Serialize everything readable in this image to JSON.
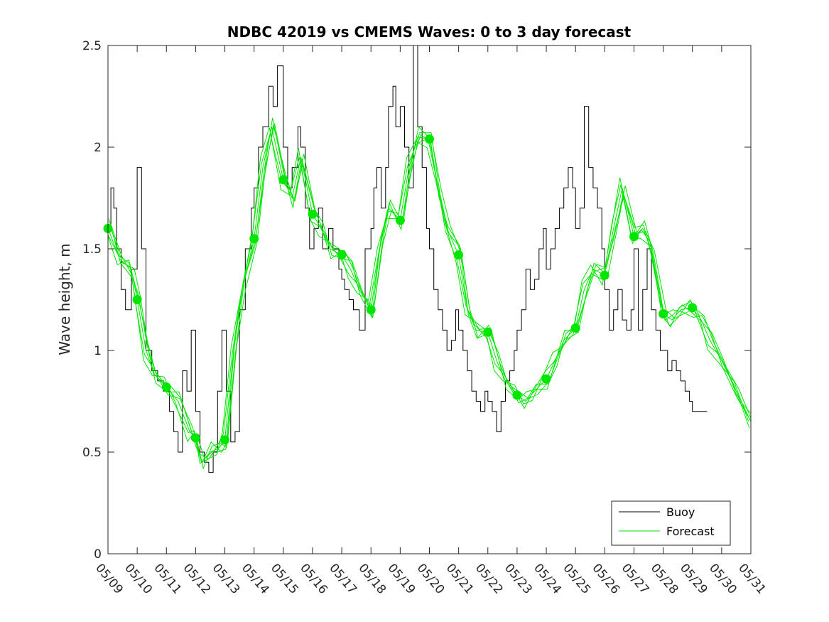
{
  "chart_data": {
    "type": "line",
    "title": "NDBC 42019 vs CMEMS Waves: 0 to 3 day forecast",
    "xlabel": "",
    "ylabel": "Wave height, m",
    "xlim": [
      "05/09",
      "05/31"
    ],
    "ylim": [
      0,
      2.5
    ],
    "yticks": [
      "0",
      "0.5",
      "1",
      "1.5",
      "2",
      "2.5"
    ],
    "categories": [
      "05/09",
      "05/10",
      "05/11",
      "05/12",
      "05/13",
      "05/14",
      "05/15",
      "05/16",
      "05/17",
      "05/18",
      "05/19",
      "05/20",
      "05/21",
      "05/22",
      "05/23",
      "05/24",
      "05/25",
      "05/26",
      "05/27",
      "05/28",
      "05/29",
      "05/30",
      "05/31"
    ],
    "grid": false,
    "legend_position": "bottom-right",
    "legend": [
      "Buoy",
      "Forecast"
    ],
    "colors": {
      "buoy": "#000000",
      "forecast": "#00e600",
      "axes": "#262626"
    },
    "series": [
      {
        "name": "Buoy",
        "x": [
          0,
          0.1,
          0.2,
          0.3,
          0.45,
          0.6,
          0.8,
          1.0,
          1.15,
          1.3,
          1.5,
          1.7,
          1.9,
          2.0,
          2.1,
          2.25,
          2.4,
          2.55,
          2.7,
          2.85,
          3.0,
          3.15,
          3.3,
          3.45,
          3.6,
          3.75,
          3.9,
          4.05,
          4.2,
          4.35,
          4.5,
          4.7,
          4.9,
          5.0,
          5.15,
          5.3,
          5.5,
          5.65,
          5.8,
          6.0,
          6.15,
          6.3,
          6.5,
          6.6,
          6.75,
          6.9,
          7.05,
          7.2,
          7.35,
          7.55,
          7.7,
          7.9,
          8.0,
          8.1,
          8.25,
          8.4,
          8.6,
          8.8,
          9.0,
          9.1,
          9.2,
          9.35,
          9.5,
          9.6,
          9.75,
          9.85,
          10.0,
          10.15,
          10.3,
          10.45,
          10.6,
          10.75,
          10.9,
          11.0,
          11.15,
          11.3,
          11.45,
          11.6,
          11.75,
          11.9,
          12.0,
          12.15,
          12.3,
          12.45,
          12.6,
          12.75,
          12.9,
          13.0,
          13.15,
          13.3,
          13.45,
          13.6,
          13.75,
          13.9,
          14.0,
          14.15,
          14.3,
          14.45,
          14.6,
          14.75,
          14.9,
          15.0,
          15.15,
          15.3,
          15.45,
          15.6,
          15.75,
          15.9,
          16.0,
          16.15,
          16.3,
          16.45,
          16.6,
          16.75,
          16.9,
          17.0,
          17.15,
          17.3,
          17.45,
          17.6,
          17.75,
          17.9,
          18.0,
          18.15,
          18.3,
          18.45,
          18.6,
          18.75,
          18.9,
          19.0,
          19.15,
          19.3,
          19.45,
          19.6,
          19.75,
          19.9,
          20.0,
          20.15,
          20.3,
          20.5
        ],
        "values": [
          1.6,
          1.8,
          1.7,
          1.5,
          1.3,
          1.2,
          1.4,
          1.9,
          1.5,
          1.0,
          0.9,
          0.85,
          0.8,
          0.8,
          0.7,
          0.6,
          0.5,
          0.9,
          0.8,
          1.1,
          0.7,
          0.5,
          0.45,
          0.4,
          0.5,
          0.8,
          1.1,
          0.8,
          0.55,
          0.6,
          1.2,
          1.5,
          1.7,
          1.8,
          2.0,
          2.1,
          2.3,
          2.2,
          2.4,
          2.0,
          1.8,
          1.9,
          2.1,
          2.0,
          1.7,
          1.5,
          1.6,
          1.7,
          1.5,
          1.6,
          1.5,
          1.4,
          1.35,
          1.3,
          1.25,
          1.2,
          1.1,
          1.5,
          1.6,
          1.8,
          1.9,
          1.7,
          1.9,
          2.2,
          2.3,
          2.1,
          2.2,
          2.0,
          1.8,
          2.5,
          2.1,
          1.9,
          1.6,
          1.5,
          1.3,
          1.2,
          1.1,
          1.0,
          1.05,
          1.2,
          1.1,
          1.0,
          0.9,
          0.8,
          0.75,
          0.7,
          0.8,
          0.75,
          0.7,
          0.6,
          0.75,
          0.85,
          0.9,
          1.0,
          1.1,
          1.2,
          1.4,
          1.3,
          1.35,
          1.5,
          1.6,
          1.4,
          1.5,
          1.6,
          1.7,
          1.8,
          1.9,
          1.8,
          1.6,
          1.7,
          2.2,
          1.9,
          1.8,
          1.7,
          1.5,
          1.3,
          1.1,
          1.2,
          1.3,
          1.15,
          1.1,
          1.2,
          1.5,
          1.1,
          1.3,
          1.5,
          1.2,
          1.1,
          1.0,
          1.0,
          0.9,
          0.95,
          0.9,
          0.85,
          0.8,
          0.75,
          0.7,
          0.7,
          0.7,
          0.7
        ]
      },
      {
        "name": "Forecast",
        "x": [
          0,
          0.4,
          0.8,
          1.0,
          1.3,
          1.6,
          2.0,
          2.4,
          2.8,
          3.0,
          3.2,
          3.5,
          3.8,
          4.0,
          4.3,
          4.6,
          5.0,
          5.3,
          5.6,
          6.0,
          6.3,
          6.6,
          7.0,
          7.3,
          7.6,
          8.0,
          8.3,
          8.6,
          9.0,
          9.3,
          9.6,
          10.0,
          10.3,
          10.6,
          11.0,
          11.3,
          11.6,
          12.0,
          12.3,
          12.6,
          13.0,
          13.3,
          13.6,
          14.0,
          14.3,
          14.6,
          15.0,
          15.3,
          15.6,
          16.0,
          16.3,
          16.6,
          17.0,
          17.3,
          17.6,
          18.0,
          18.3,
          18.6,
          19.0,
          19.3,
          19.6,
          20.0,
          20.3,
          20.6,
          21.0,
          21.5,
          22.0
        ],
        "values": [
          1.6,
          1.45,
          1.4,
          1.25,
          1.0,
          0.88,
          0.82,
          0.75,
          0.6,
          0.57,
          0.45,
          0.5,
          0.52,
          0.56,
          1.0,
          1.3,
          1.55,
          1.9,
          2.1,
          1.84,
          1.75,
          1.95,
          1.67,
          1.6,
          1.5,
          1.47,
          1.4,
          1.3,
          1.2,
          1.5,
          1.7,
          1.64,
          1.9,
          2.05,
          2.04,
          1.8,
          1.6,
          1.47,
          1.2,
          1.1,
          1.09,
          0.95,
          0.85,
          0.78,
          0.75,
          0.8,
          0.86,
          0.95,
          1.05,
          1.11,
          1.3,
          1.4,
          1.37,
          1.6,
          1.8,
          1.56,
          1.6,
          1.5,
          1.18,
          1.15,
          1.2,
          1.21,
          1.15,
          1.05,
          0.95,
          0.8,
          0.65
        ]
      },
      {
        "name": "",
        "x": [
          0,
          1,
          2,
          3,
          4,
          5,
          6,
          7,
          8,
          9,
          10,
          11,
          12,
          13,
          14,
          15,
          16,
          17,
          18,
          19,
          20
        ],
        "values": [
          1.6,
          1.25,
          0.82,
          0.57,
          0.56,
          1.55,
          1.84,
          1.67,
          1.47,
          1.2,
          1.64,
          2.04,
          1.47,
          1.09,
          0.78,
          0.86,
          1.11,
          1.37,
          1.56,
          1.18,
          1.21
        ]
      }
    ]
  }
}
